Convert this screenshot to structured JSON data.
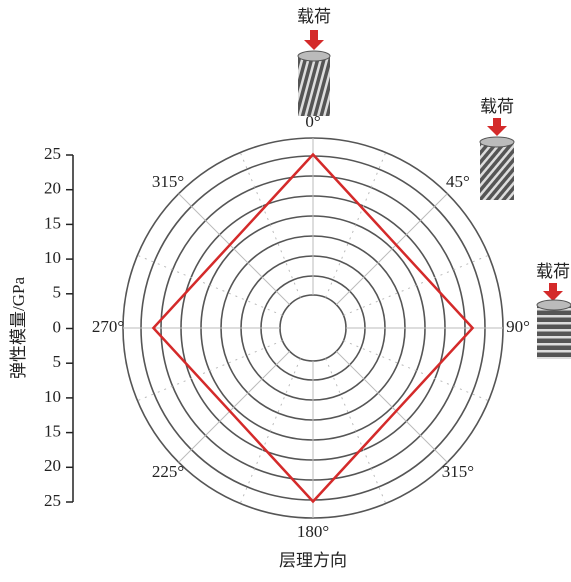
{
  "chart_data": {
    "type": "polar",
    "ylabel": "弹性模量/GPa",
    "xlabel": "层理方向",
    "load_label": "载荷",
    "angular_labels": [
      "0°",
      "45°",
      "90°",
      "315°",
      "180°",
      "225°",
      "270°",
      "315°"
    ],
    "ylim": [
      -25,
      25
    ],
    "yticks": [
      {
        "value": 25,
        "label": "25"
      },
      {
        "value": 20,
        "label": "20"
      },
      {
        "value": 15,
        "label": "15"
      },
      {
        "value": 10,
        "label": "10"
      },
      {
        "value": 5,
        "label": "5"
      },
      0,
      {
        "value": -5,
        "label": "5"
      },
      {
        "value": -10,
        "label": "10"
      },
      {
        "value": -15,
        "label": "15"
      },
      {
        "value": -20,
        "label": "20"
      },
      {
        "value": -25,
        "label": "25"
      }
    ],
    "series": [
      {
        "color": "#d42a2a",
        "theta": [
          0,
          90,
          180,
          270
        ],
        "r": [
          25,
          23,
          25,
          23
        ]
      }
    ]
  }
}
